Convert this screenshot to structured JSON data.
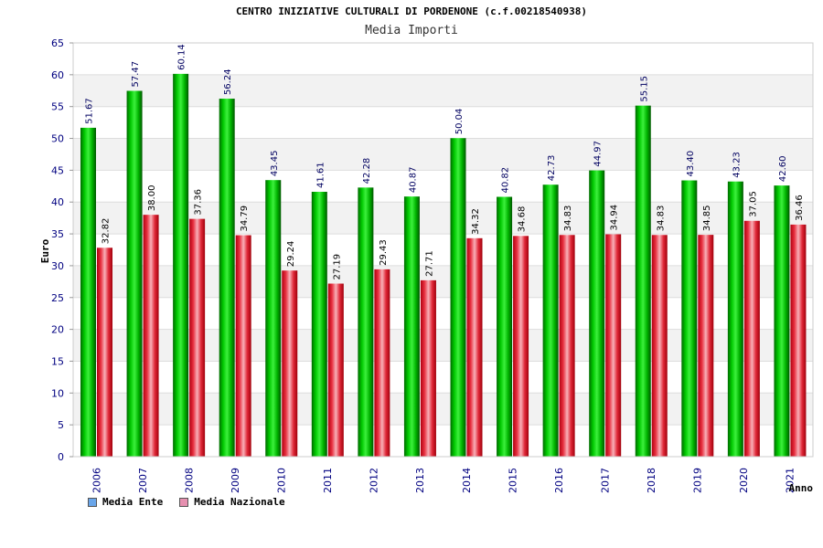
{
  "colors": {
    "ente": "#00b000",
    "nazionale": "#e0303a",
    "legend_ente": "#6aa6ea",
    "legend_nazionale": "#e690b0",
    "axis_text": "#000080",
    "grid_band": "#f2f2f2"
  },
  "chart_data": {
    "type": "bar",
    "title": "CENTRO INIZIATIVE CULTURALI DI PORDENONE (c.f.00218540938)",
    "subtitle": "Media Importi",
    "xlabel": "Anno",
    "ylabel": "Euro",
    "ylim": [
      0,
      65
    ],
    "yticks": [
      0,
      5,
      10,
      15,
      20,
      25,
      30,
      35,
      40,
      45,
      50,
      55,
      60,
      65
    ],
    "categories": [
      "2006",
      "2007",
      "2008",
      "2009",
      "2010",
      "2011",
      "2012",
      "2013",
      "2014",
      "2015",
      "2016",
      "2017",
      "2018",
      "2019",
      "2020",
      "2021"
    ],
    "series": [
      {
        "name": "Media Ente",
        "values": [
          51.67,
          57.47,
          60.14,
          56.24,
          43.45,
          41.61,
          42.28,
          40.87,
          50.04,
          40.82,
          42.73,
          44.97,
          55.15,
          43.4,
          43.23,
          42.6
        ],
        "labels": [
          "51.67",
          "57.47",
          "60.14",
          "56.24",
          "43.45",
          "41.61",
          "42.28",
          "40.87",
          "50.04",
          "40.82",
          "42.73",
          "44.97",
          "55.15",
          "43.40",
          "43.23",
          "42.60"
        ]
      },
      {
        "name": "Media Nazionale",
        "values": [
          32.82,
          38.0,
          37.36,
          34.79,
          29.24,
          27.19,
          29.43,
          27.71,
          34.32,
          34.68,
          34.83,
          34.94,
          34.83,
          34.85,
          37.05,
          36.46
        ],
        "labels": [
          "32.82",
          "38.00",
          "37.36",
          "34.79",
          "29.24",
          "27.19",
          "29.43",
          "27.71",
          "34.32",
          "34.68",
          "34.83",
          "34.94",
          "34.83",
          "34.85",
          "37.05",
          "36.46"
        ]
      }
    ],
    "legend_position": "bottom-left"
  }
}
